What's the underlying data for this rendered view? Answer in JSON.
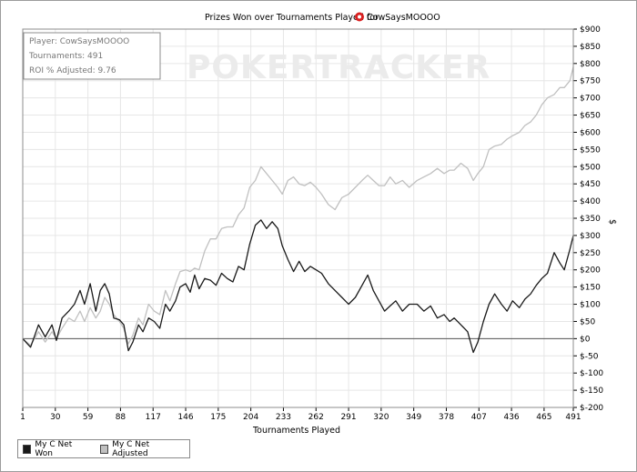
{
  "chart_data": {
    "type": "line",
    "title": "Prizes Won over Tournaments Played for",
    "player_name": "CowSaysMOOOO",
    "xlabel": "Tournaments Played",
    "ylabel": "$",
    "xlim": [
      1,
      491
    ],
    "ylim": [
      -200,
      900
    ],
    "x_ticks": [
      "1",
      "30",
      "59",
      "88",
      "117",
      "146",
      "175",
      "204",
      "233",
      "262",
      "291",
      "320",
      "349",
      "378",
      "407",
      "436",
      "465",
      "491"
    ],
    "y_ticks": [
      "$900",
      "$850",
      "$800",
      "$750",
      "$700",
      "$650",
      "$600",
      "$550",
      "$500",
      "$450",
      "$400",
      "$350",
      "$300",
      "$250",
      "$200",
      "$150",
      "$100",
      "$50",
      "$0",
      "$-50",
      "$-100",
      "$-150",
      "$-200"
    ],
    "info": {
      "player": "Player: CowSaysMOOOO",
      "tournaments": "Tournaments: 491",
      "roi": "ROI % Adjusted: 9.76"
    },
    "watermark": "POKERTRACKER",
    "grid": true,
    "legend_position": "bottom-left",
    "colors": {
      "won": "#1a1a1a",
      "adjusted": "#c0c0c0",
      "grid": "#e6e6e6",
      "zero": "#555555"
    },
    "series": [
      {
        "name": "My C Net Won",
        "points": [
          [
            1,
            0
          ],
          [
            8,
            -25
          ],
          [
            15,
            40
          ],
          [
            21,
            5
          ],
          [
            27,
            40
          ],
          [
            31,
            -5
          ],
          [
            36,
            60
          ],
          [
            42,
            80
          ],
          [
            47,
            100
          ],
          [
            52,
            140
          ],
          [
            56,
            100
          ],
          [
            61,
            160
          ],
          [
            66,
            80
          ],
          [
            70,
            140
          ],
          [
            74,
            160
          ],
          [
            78,
            130
          ],
          [
            82,
            60
          ],
          [
            87,
            55
          ],
          [
            91,
            40
          ],
          [
            95,
            -35
          ],
          [
            99,
            -10
          ],
          [
            104,
            40
          ],
          [
            108,
            20
          ],
          [
            113,
            60
          ],
          [
            118,
            50
          ],
          [
            123,
            30
          ],
          [
            128,
            100
          ],
          [
            132,
            80
          ],
          [
            137,
            110
          ],
          [
            141,
            150
          ],
          [
            146,
            160
          ],
          [
            150,
            135
          ],
          [
            154,
            185
          ],
          [
            158,
            145
          ],
          [
            163,
            175
          ],
          [
            168,
            170
          ],
          [
            173,
            155
          ],
          [
            178,
            190
          ],
          [
            183,
            175
          ],
          [
            188,
            165
          ],
          [
            193,
            210
          ],
          [
            198,
            200
          ],
          [
            203,
            275
          ],
          [
            208,
            330
          ],
          [
            213,
            345
          ],
          [
            218,
            320
          ],
          [
            223,
            340
          ],
          [
            228,
            320
          ],
          [
            232,
            270
          ],
          [
            237,
            230
          ],
          [
            242,
            195
          ],
          [
            247,
            225
          ],
          [
            252,
            195
          ],
          [
            257,
            210
          ],
          [
            262,
            200
          ],
          [
            267,
            190
          ],
          [
            273,
            160
          ],
          [
            279,
            140
          ],
          [
            285,
            120
          ],
          [
            291,
            100
          ],
          [
            297,
            120
          ],
          [
            303,
            155
          ],
          [
            308,
            185
          ],
          [
            313,
            140
          ],
          [
            318,
            110
          ],
          [
            323,
            80
          ],
          [
            328,
            95
          ],
          [
            333,
            110
          ],
          [
            339,
            80
          ],
          [
            345,
            100
          ],
          [
            352,
            100
          ],
          [
            358,
            80
          ],
          [
            364,
            95
          ],
          [
            370,
            60
          ],
          [
            376,
            70
          ],
          [
            381,
            50
          ],
          [
            385,
            60
          ],
          [
            391,
            40
          ],
          [
            397,
            20
          ],
          [
            402,
            -40
          ],
          [
            406,
            -10
          ],
          [
            411,
            50
          ],
          [
            416,
            100
          ],
          [
            421,
            130
          ],
          [
            427,
            100
          ],
          [
            432,
            80
          ],
          [
            437,
            110
          ],
          [
            443,
            90
          ],
          [
            448,
            115
          ],
          [
            453,
            130
          ],
          [
            458,
            155
          ],
          [
            463,
            175
          ],
          [
            468,
            190
          ],
          [
            474,
            250
          ],
          [
            479,
            220
          ],
          [
            483,
            200
          ],
          [
            488,
            260
          ],
          [
            491,
            300
          ]
        ]
      },
      {
        "name": "My C Net Adjusted",
        "points": [
          [
            1,
            0
          ],
          [
            8,
            -20
          ],
          [
            15,
            20
          ],
          [
            21,
            -10
          ],
          [
            27,
            20
          ],
          [
            31,
            0
          ],
          [
            36,
            30
          ],
          [
            42,
            60
          ],
          [
            47,
            50
          ],
          [
            52,
            80
          ],
          [
            56,
            50
          ],
          [
            61,
            90
          ],
          [
            66,
            60
          ],
          [
            70,
            80
          ],
          [
            74,
            120
          ],
          [
            78,
            100
          ],
          [
            82,
            70
          ],
          [
            87,
            50
          ],
          [
            91,
            30
          ],
          [
            95,
            -15
          ],
          [
            99,
            10
          ],
          [
            104,
            60
          ],
          [
            108,
            40
          ],
          [
            113,
            100
          ],
          [
            118,
            80
          ],
          [
            123,
            70
          ],
          [
            128,
            140
          ],
          [
            132,
            110
          ],
          [
            137,
            160
          ],
          [
            141,
            195
          ],
          [
            146,
            200
          ],
          [
            150,
            195
          ],
          [
            154,
            205
          ],
          [
            158,
            200
          ],
          [
            163,
            255
          ],
          [
            168,
            290
          ],
          [
            173,
            290
          ],
          [
            178,
            320
          ],
          [
            183,
            325
          ],
          [
            188,
            325
          ],
          [
            193,
            360
          ],
          [
            198,
            380
          ],
          [
            203,
            440
          ],
          [
            208,
            460
          ],
          [
            213,
            500
          ],
          [
            218,
            480
          ],
          [
            223,
            460
          ],
          [
            228,
            440
          ],
          [
            232,
            420
          ],
          [
            237,
            460
          ],
          [
            242,
            470
          ],
          [
            247,
            450
          ],
          [
            252,
            445
          ],
          [
            257,
            455
          ],
          [
            262,
            440
          ],
          [
            267,
            420
          ],
          [
            273,
            390
          ],
          [
            279,
            375
          ],
          [
            285,
            410
          ],
          [
            291,
            420
          ],
          [
            297,
            440
          ],
          [
            303,
            460
          ],
          [
            308,
            475
          ],
          [
            313,
            460
          ],
          [
            318,
            445
          ],
          [
            323,
            445
          ],
          [
            328,
            470
          ],
          [
            333,
            450
          ],
          [
            339,
            460
          ],
          [
            345,
            440
          ],
          [
            352,
            460
          ],
          [
            358,
            470
          ],
          [
            364,
            480
          ],
          [
            370,
            495
          ],
          [
            376,
            480
          ],
          [
            381,
            490
          ],
          [
            385,
            490
          ],
          [
            391,
            510
          ],
          [
            397,
            495
          ],
          [
            402,
            460
          ],
          [
            406,
            480
          ],
          [
            411,
            500
          ],
          [
            416,
            550
          ],
          [
            421,
            560
          ],
          [
            427,
            565
          ],
          [
            432,
            580
          ],
          [
            437,
            590
          ],
          [
            443,
            600
          ],
          [
            448,
            620
          ],
          [
            453,
            630
          ],
          [
            458,
            650
          ],
          [
            463,
            680
          ],
          [
            468,
            700
          ],
          [
            474,
            710
          ],
          [
            479,
            730
          ],
          [
            483,
            730
          ],
          [
            488,
            750
          ],
          [
            491,
            790
          ]
        ]
      }
    ]
  },
  "legend": {
    "won_label": "My C Net Won",
    "adjusted_label": "My C Net Adjusted"
  }
}
